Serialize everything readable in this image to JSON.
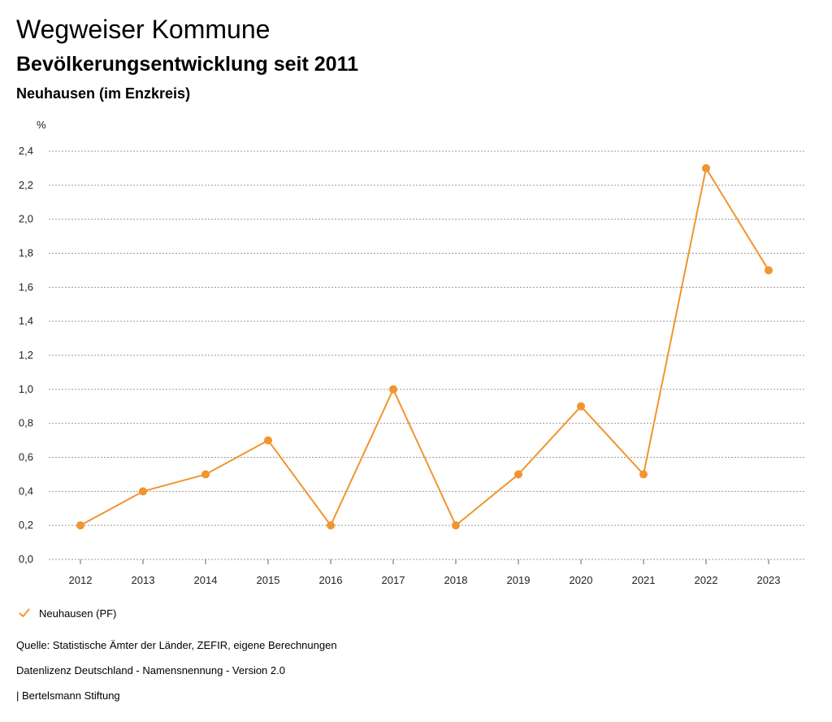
{
  "header": {
    "title": "Wegweiser Kommune",
    "subtitle": "Bevölkerungsentwicklung seit 2011",
    "region": "Neuhausen (im Enzkreis)"
  },
  "chart_data": {
    "type": "line",
    "title": "Bevölkerungsentwicklung seit 2011",
    "xlabel": "",
    "ylabel": "%",
    "ylim": [
      0,
      2.4
    ],
    "yticks": [
      "0,0",
      "0,2",
      "0,4",
      "0,6",
      "0,8",
      "1,0",
      "1,2",
      "1,4",
      "1,6",
      "1,8",
      "2,0",
      "2,2",
      "2,4"
    ],
    "categories": [
      "2012",
      "2013",
      "2014",
      "2015",
      "2016",
      "2017",
      "2018",
      "2019",
      "2020",
      "2021",
      "2022",
      "2023"
    ],
    "grid": true,
    "legend_position": "bottom-left",
    "series": [
      {
        "name": "Neuhausen (PF)",
        "color": "#f0952f",
        "values": [
          0.2,
          0.4,
          0.5,
          0.7,
          0.2,
          1.0,
          0.2,
          0.5,
          0.9,
          0.5,
          2.3,
          1.7
        ]
      }
    ]
  },
  "legend": {
    "label": "Neuhausen (PF)",
    "icon": "checkmark-icon",
    "color": "#f0952f"
  },
  "footer": {
    "source": "Quelle: Statistische Ämter der Länder, ZEFIR, eigene Berechnungen",
    "license": "Datenlizenz Deutschland - Namensnennung - Version 2.0",
    "publisher": "| Bertelsmann Stiftung"
  }
}
